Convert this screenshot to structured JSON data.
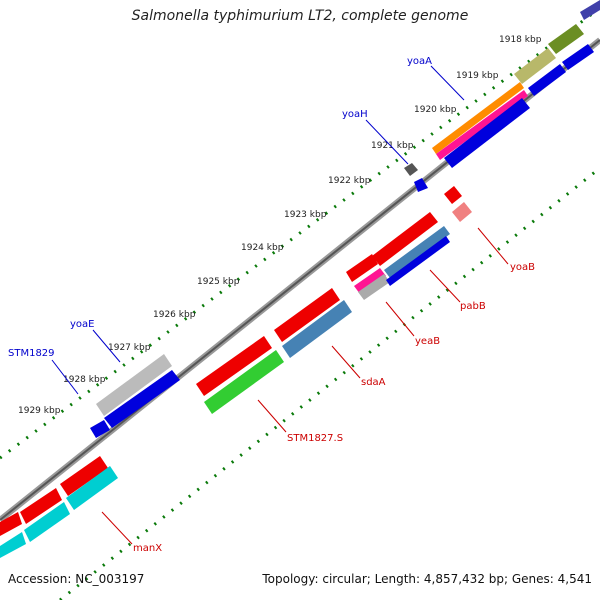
{
  "title": "Salmonella typhimurium LT2, complete genome",
  "footer": {
    "accession": "Accession: NC_003197",
    "summary": "Topology: circular; Length: 4,857,432 bp; Genes: 4,541"
  },
  "kbp_labels": [
    "1918 kbp",
    "1919 kbp",
    "1920 kbp",
    "1921 kbp",
    "1922 kbp",
    "1923 kbp",
    "1924 kbp",
    "1925 kbp",
    "1926 kbp",
    "1927 kbp",
    "1928 kbp",
    "1929 kbp"
  ],
  "gene_labels_forward": [
    "yoaA",
    "yoaH",
    "yoaE",
    "STM1829"
  ],
  "gene_labels_reverse": [
    "yoaB",
    "pabB",
    "yeaB",
    "sdaA",
    "STM1827.S",
    "manX"
  ]
}
